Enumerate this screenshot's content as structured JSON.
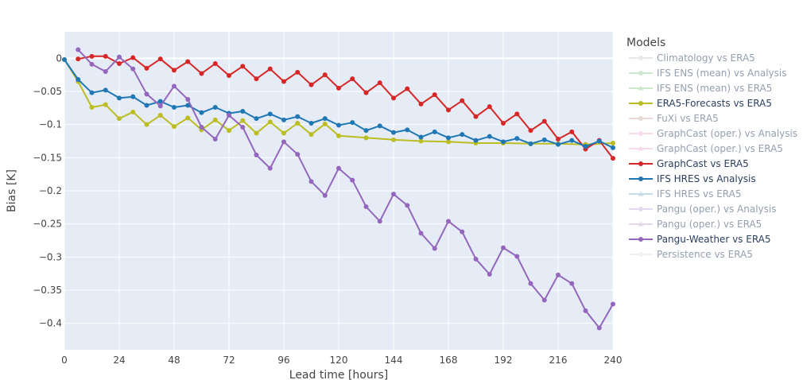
{
  "chart_data": {
    "type": "line",
    "xlabel": "Lead time [hours]",
    "ylabel": "Bias [K]",
    "xlim": [
      0,
      240
    ],
    "ylim": [
      -0.44,
      0.04
    ],
    "xticks": [
      0,
      24,
      48,
      72,
      96,
      120,
      144,
      168,
      192,
      216,
      240
    ],
    "yticks": [
      0,
      -0.05,
      -0.1,
      -0.15,
      -0.2,
      -0.25,
      -0.3,
      -0.35,
      -0.4
    ],
    "ytick_labels": [
      "0",
      "−0.05",
      "−0.1",
      "−0.15",
      "−0.2",
      "−0.25",
      "−0.3",
      "−0.35",
      "−0.4"
    ],
    "grid": true,
    "plot_background": "#e5ecf6",
    "legend_title": "Models",
    "legend_position": "right",
    "series": [
      {
        "name": "Climatology vs ERA5",
        "color": "#d0d0d0",
        "visible": false,
        "marker": "circle",
        "x": [],
        "y": []
      },
      {
        "name": "IFS ENS (mean) vs Analysis",
        "color": "#98d39b",
        "visible": false,
        "marker": "circle",
        "x": [],
        "y": []
      },
      {
        "name": "IFS ENS (mean) vs ERA5",
        "color": "#98d39b",
        "visible": false,
        "marker": "triangle",
        "x": [],
        "y": []
      },
      {
        "name": "ERA5-Forecasts vs ERA5",
        "color": "#bcbd22",
        "visible": true,
        "marker": "circle",
        "x": [
          0,
          6,
          12,
          18,
          24,
          30,
          36,
          42,
          48,
          54,
          60,
          66,
          72,
          78,
          84,
          90,
          96,
          102,
          108,
          114,
          120,
          132,
          144,
          156,
          168,
          180,
          192,
          204,
          216,
          228,
          240
        ],
        "y": [
          -0.002,
          -0.035,
          -0.074,
          -0.07,
          -0.091,
          -0.081,
          -0.1,
          -0.086,
          -0.103,
          -0.09,
          -0.108,
          -0.093,
          -0.109,
          -0.094,
          -0.113,
          -0.096,
          -0.113,
          -0.098,
          -0.115,
          -0.099,
          -0.117,
          -0.12,
          -0.123,
          -0.125,
          -0.126,
          -0.128,
          -0.128,
          -0.129,
          -0.129,
          -0.13,
          -0.128
        ]
      },
      {
        "name": "FuXi vs ERA5",
        "color": "#d6b4ad",
        "visible": false,
        "marker": "circle",
        "x": [],
        "y": []
      },
      {
        "name": "GraphCast (oper.) vs Analysis",
        "color": "#f5b5dd",
        "visible": false,
        "marker": "circle",
        "x": [],
        "y": []
      },
      {
        "name": "GraphCast (oper.) vs ERA5",
        "color": "#f5b5dd",
        "visible": false,
        "marker": "triangle",
        "x": [],
        "y": []
      },
      {
        "name": "GraphCast vs ERA5",
        "color": "#d62728",
        "visible": true,
        "marker": "circle",
        "x": [
          6,
          12,
          18,
          24,
          30,
          36,
          42,
          48,
          54,
          60,
          66,
          72,
          78,
          84,
          90,
          96,
          102,
          108,
          114,
          120,
          126,
          132,
          138,
          144,
          150,
          156,
          162,
          168,
          174,
          180,
          186,
          192,
          198,
          204,
          210,
          216,
          222,
          228,
          234,
          240
        ],
        "y": [
          -0.001,
          0.003,
          0.003,
          -0.008,
          0.001,
          -0.015,
          -0.001,
          -0.018,
          -0.005,
          -0.023,
          -0.008,
          -0.026,
          -0.012,
          -0.031,
          -0.016,
          -0.035,
          -0.021,
          -0.04,
          -0.025,
          -0.045,
          -0.031,
          -0.052,
          -0.037,
          -0.06,
          -0.046,
          -0.069,
          -0.055,
          -0.078,
          -0.064,
          -0.088,
          -0.073,
          -0.098,
          -0.084,
          -0.109,
          -0.095,
          -0.122,
          -0.111,
          -0.137,
          -0.124,
          -0.151
        ]
      },
      {
        "name": "IFS HRES vs Analysis",
        "color": "#1f77b4",
        "visible": true,
        "marker": "circle",
        "x": [
          0,
          6,
          12,
          18,
          24,
          30,
          36,
          42,
          48,
          54,
          60,
          66,
          72,
          78,
          84,
          90,
          96,
          102,
          108,
          114,
          120,
          126,
          132,
          138,
          144,
          150,
          156,
          162,
          168,
          174,
          180,
          186,
          192,
          198,
          204,
          210,
          216,
          222,
          228,
          234,
          240
        ],
        "y": [
          -0.002,
          -0.032,
          -0.052,
          -0.048,
          -0.06,
          -0.058,
          -0.071,
          -0.065,
          -0.074,
          -0.071,
          -0.082,
          -0.074,
          -0.083,
          -0.08,
          -0.091,
          -0.084,
          -0.093,
          -0.088,
          -0.098,
          -0.091,
          -0.101,
          -0.097,
          -0.109,
          -0.102,
          -0.112,
          -0.108,
          -0.119,
          -0.111,
          -0.12,
          -0.115,
          -0.124,
          -0.118,
          -0.126,
          -0.121,
          -0.129,
          -0.123,
          -0.13,
          -0.124,
          -0.133,
          -0.125,
          -0.135
        ]
      },
      {
        "name": "IFS HRES vs ERA5",
        "color": "#8fbbd9",
        "visible": false,
        "marker": "triangle",
        "x": [],
        "y": []
      },
      {
        "name": "Pangu (oper.) vs Analysis",
        "color": "#c9b3dd",
        "visible": false,
        "marker": "circle",
        "x": [],
        "y": []
      },
      {
        "name": "Pangu (oper.) vs ERA5",
        "color": "#c9b3dd",
        "visible": false,
        "marker": "triangle",
        "x": [],
        "y": []
      },
      {
        "name": "Pangu-Weather vs ERA5",
        "color": "#9467bd",
        "visible": true,
        "marker": "circle",
        "x": [
          6,
          12,
          18,
          24,
          30,
          36,
          42,
          48,
          54,
          60,
          66,
          72,
          78,
          84,
          90,
          96,
          102,
          108,
          114,
          120,
          126,
          132,
          138,
          144,
          150,
          156,
          162,
          168,
          174,
          180,
          186,
          192,
          198,
          204,
          210,
          216,
          222,
          228,
          234,
          240
        ],
        "y": [
          0.013,
          -0.009,
          -0.02,
          0.002,
          -0.016,
          -0.054,
          -0.072,
          -0.042,
          -0.062,
          -0.104,
          -0.122,
          -0.086,
          -0.104,
          -0.146,
          -0.166,
          -0.126,
          -0.145,
          -0.186,
          -0.207,
          -0.166,
          -0.184,
          -0.224,
          -0.246,
          -0.205,
          -0.222,
          -0.264,
          -0.287,
          -0.246,
          -0.262,
          -0.303,
          -0.326,
          -0.286,
          -0.299,
          -0.34,
          -0.365,
          -0.327,
          -0.34,
          -0.381,
          -0.407,
          -0.371
        ]
      },
      {
        "name": "Persistence vs ERA5",
        "color": "#e5e5e5",
        "visible": false,
        "marker": "circle",
        "x": [],
        "y": []
      }
    ]
  }
}
